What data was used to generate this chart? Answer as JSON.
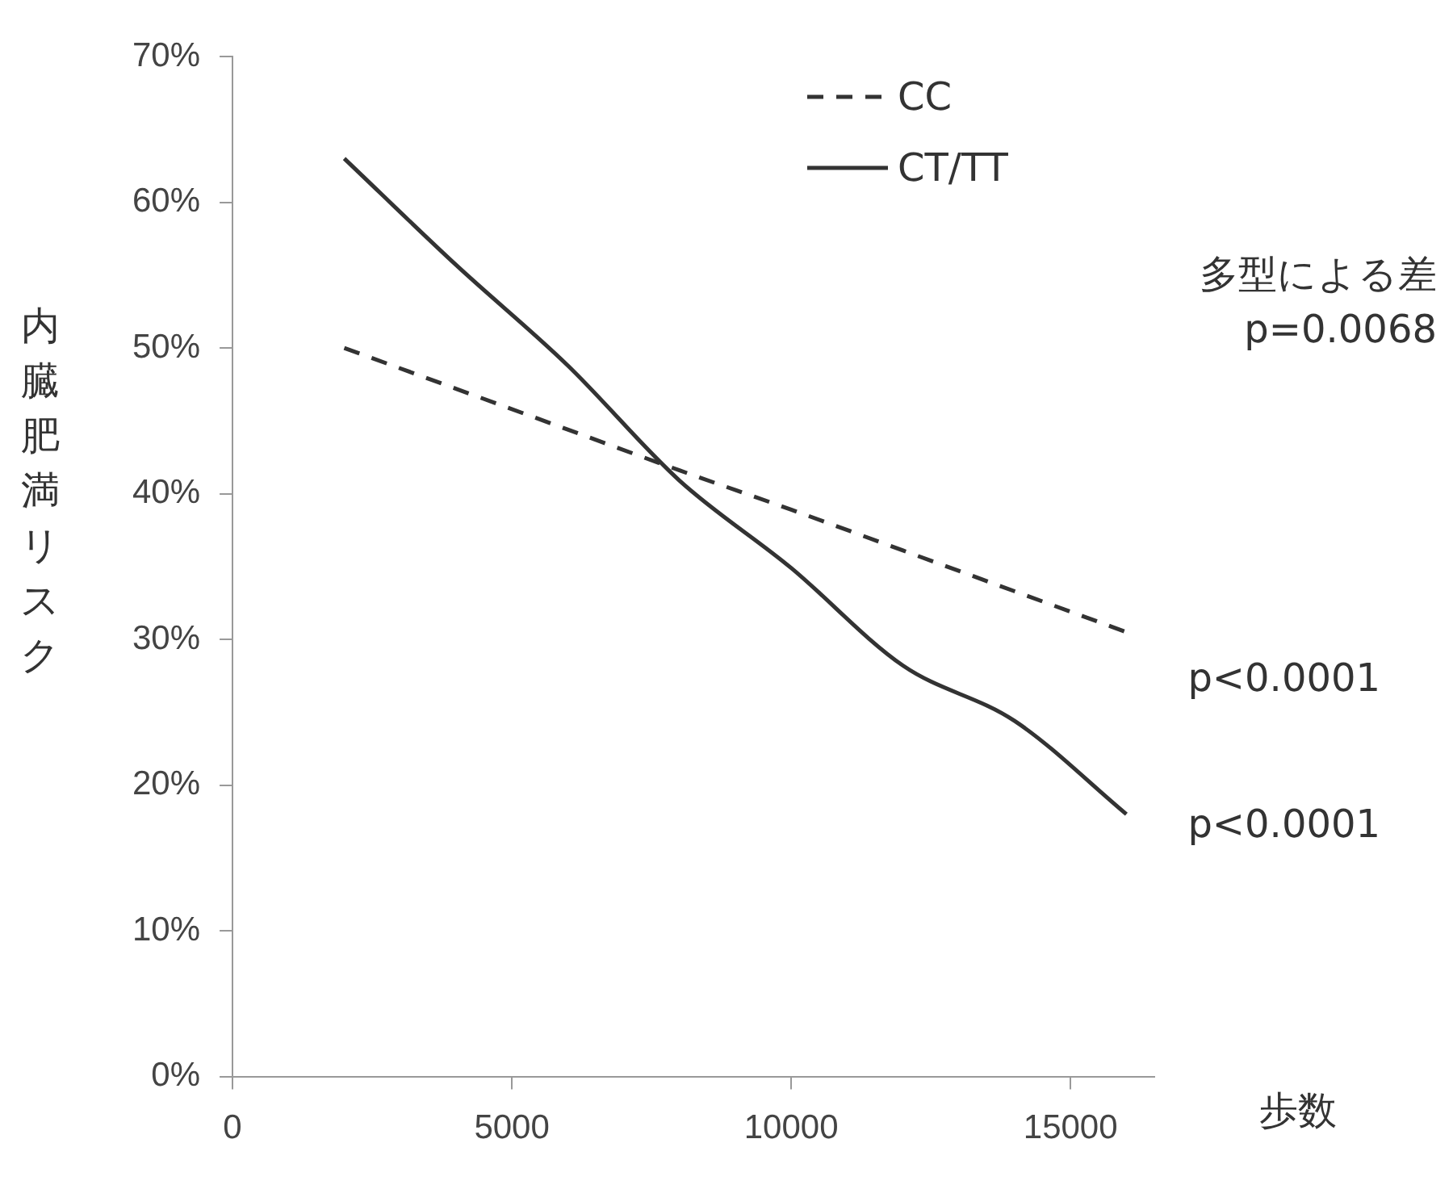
{
  "chart_data": {
    "type": "line",
    "ylabel": "内臓肥満リスク",
    "xlabel": "歩数",
    "xlim": [
      0,
      16500
    ],
    "xticks": [
      0,
      5000,
      10000,
      15000
    ],
    "ylim": [
      0,
      70
    ],
    "yticks": [
      {
        "value": 0,
        "label": "0%"
      },
      {
        "value": 10,
        "label": "10%"
      },
      {
        "value": 20,
        "label": "20%"
      },
      {
        "value": 30,
        "label": "30%"
      },
      {
        "value": 40,
        "label": "40%"
      },
      {
        "value": 50,
        "label": "50%"
      },
      {
        "value": 60,
        "label": "60%"
      },
      {
        "value": 70,
        "label": "70%"
      }
    ],
    "x": [
      2000,
      4000,
      6000,
      8000,
      10000,
      12000,
      14000,
      16000
    ],
    "series": [
      {
        "name": "CC",
        "color": "#333333",
        "line_style": "dashed",
        "values": [
          50,
          47.2,
          44.4,
          41.6,
          38.9,
          36.1,
          33.3,
          30.5
        ]
      },
      {
        "name": "CT/TT",
        "color": "#333333",
        "line_style": "solid",
        "values": [
          63,
          55.7,
          48.8,
          40.9,
          34.9,
          28.2,
          24.4,
          18
        ]
      }
    ],
    "annotations": [
      "多型による差\np=0.0068",
      {
        "text": "p<0.0001",
        "x": 16000,
        "y": 30.5
      },
      {
        "text": "p<0.0001",
        "x": 16000,
        "y": 18
      }
    ],
    "grid": false,
    "legend": "top right",
    "marker": "none"
  }
}
